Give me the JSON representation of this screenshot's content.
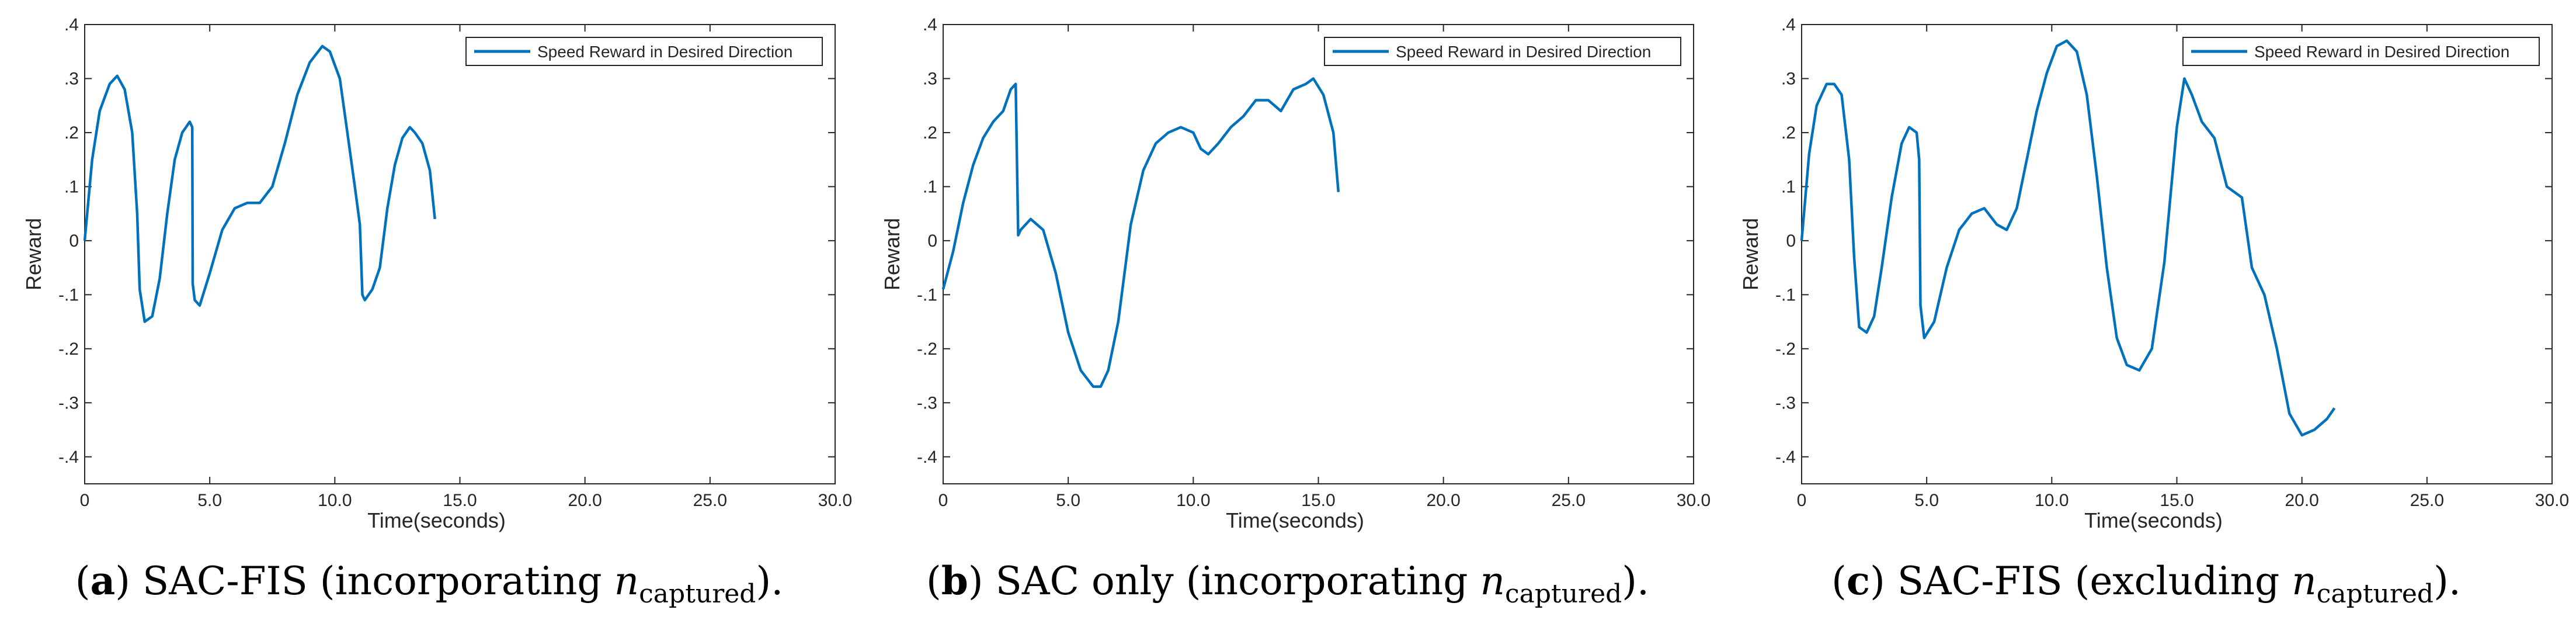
{
  "figure": {
    "caption_parts": [
      {
        "label": "a",
        "pre": "SAC-FIS (incorporating ",
        "var": "n",
        "sub": "captured",
        "post": ")."
      },
      {
        "label": "b",
        "pre": "SAC only (incorporating ",
        "var": "n",
        "sub": "captured",
        "post": ")."
      },
      {
        "label": "c",
        "pre": "SAC-FIS (excluding ",
        "var": "n",
        "sub": "captured",
        "post": ")."
      }
    ]
  },
  "colors": {
    "line": "#0072BD",
    "axis": "#262626",
    "background": "#ffffff"
  },
  "chart_data": [
    {
      "type": "line",
      "xlabel": "Time(seconds)",
      "ylabel": "Reward",
      "xlim": [
        0,
        30
      ],
      "ylim": [
        -0.45,
        0.4
      ],
      "xticks": [
        0,
        5,
        10,
        15,
        20,
        25,
        30
      ],
      "yticks": [
        -0.4,
        -0.3,
        -0.2,
        -0.1,
        0,
        0.1,
        0.2,
        0.3,
        0.4
      ],
      "legend_location": "top-right",
      "grid": false,
      "series": [
        {
          "name": "Speed Reward in Desired Direction",
          "x": [
            0,
            0.3,
            0.6,
            1.0,
            1.3,
            1.6,
            1.9,
            2.1,
            2.2,
            2.4,
            2.7,
            3.0,
            3.3,
            3.6,
            3.9,
            4.2,
            4.3,
            4.32,
            4.4,
            4.6,
            5.0,
            5.5,
            6.0,
            6.5,
            7.0,
            7.5,
            8.0,
            8.5,
            9.0,
            9.5,
            9.8,
            10.2,
            10.5,
            10.8,
            11.0,
            11.1,
            11.2,
            11.5,
            11.8,
            12.1,
            12.4,
            12.7,
            13.0,
            13.2,
            13.5,
            13.8,
            14.0
          ],
          "y": [
            0,
            0.15,
            0.24,
            0.29,
            0.305,
            0.28,
            0.2,
            0.05,
            -0.09,
            -0.15,
            -0.14,
            -0.07,
            0.05,
            0.15,
            0.2,
            0.22,
            0.21,
            -0.08,
            -0.11,
            -0.12,
            -0.06,
            0.02,
            0.06,
            0.07,
            0.07,
            0.1,
            0.18,
            0.27,
            0.33,
            0.36,
            0.35,
            0.3,
            0.2,
            0.1,
            0.03,
            -0.1,
            -0.11,
            -0.09,
            -0.05,
            0.06,
            0.14,
            0.19,
            0.21,
            0.2,
            0.18,
            0.13,
            0.04
          ]
        }
      ]
    },
    {
      "type": "line",
      "xlabel": "Time(seconds)",
      "ylabel": "Reward",
      "xlim": [
        0,
        30
      ],
      "ylim": [
        -0.45,
        0.4
      ],
      "xticks": [
        0,
        5,
        10,
        15,
        20,
        25,
        30
      ],
      "yticks": [
        -0.4,
        -0.3,
        -0.2,
        -0.1,
        0,
        0.1,
        0.2,
        0.3,
        0.4
      ],
      "legend_location": "top-right",
      "grid": false,
      "series": [
        {
          "name": "Speed Reward in Desired Direction",
          "x": [
            0,
            0.4,
            0.8,
            1.2,
            1.6,
            2.0,
            2.4,
            2.7,
            2.9,
            3.0,
            3.1,
            3.5,
            4.0,
            4.5,
            5.0,
            5.5,
            6.0,
            6.3,
            6.6,
            7.0,
            7.5,
            8.0,
            8.5,
            9.0,
            9.5,
            10.0,
            10.3,
            10.6,
            11.0,
            11.5,
            12.0,
            12.5,
            13.0,
            13.5,
            14.0,
            14.5,
            14.8,
            15.2,
            15.6,
            15.8
          ],
          "y": [
            -0.09,
            -0.02,
            0.07,
            0.14,
            0.19,
            0.22,
            0.24,
            0.28,
            0.29,
            0.01,
            0.02,
            0.04,
            0.02,
            -0.06,
            -0.17,
            -0.24,
            -0.27,
            -0.27,
            -0.24,
            -0.15,
            0.03,
            0.13,
            0.18,
            0.2,
            0.21,
            0.2,
            0.17,
            0.16,
            0.18,
            0.21,
            0.23,
            0.26,
            0.26,
            0.24,
            0.28,
            0.29,
            0.3,
            0.27,
            0.2,
            0.09
          ]
        }
      ]
    },
    {
      "type": "line",
      "xlabel": "Time(seconds)",
      "ylabel": "Reward",
      "xlim": [
        0,
        30
      ],
      "ylim": [
        -0.45,
        0.4
      ],
      "xticks": [
        0,
        5,
        10,
        15,
        20,
        25,
        30
      ],
      "yticks": [
        -0.4,
        -0.3,
        -0.2,
        -0.1,
        0,
        0.1,
        0.2,
        0.3,
        0.4
      ],
      "legend_location": "top-right",
      "grid": false,
      "series": [
        {
          "name": "Speed Reward in Desired Direction",
          "x": [
            0,
            0.3,
            0.6,
            1.0,
            1.3,
            1.6,
            1.9,
            2.1,
            2.3,
            2.6,
            2.9,
            3.2,
            3.6,
            4.0,
            4.3,
            4.6,
            4.7,
            4.75,
            4.9,
            5.3,
            5.8,
            6.3,
            6.8,
            7.3,
            7.8,
            8.2,
            8.6,
            9.0,
            9.4,
            9.8,
            10.2,
            10.6,
            11.0,
            11.4,
            11.8,
            12.2,
            12.6,
            13.0,
            13.5,
            14.0,
            14.5,
            15.0,
            15.3,
            15.6,
            16.0,
            16.5,
            17.0,
            17.3,
            17.6,
            18.0,
            18.5,
            19.0,
            19.5,
            20.0,
            20.5,
            21.0,
            21.3
          ],
          "y": [
            0,
            0.16,
            0.25,
            0.29,
            0.29,
            0.27,
            0.15,
            -0.03,
            -0.16,
            -0.17,
            -0.14,
            -0.05,
            0.08,
            0.18,
            0.21,
            0.2,
            0.15,
            -0.12,
            -0.18,
            -0.15,
            -0.05,
            0.02,
            0.05,
            0.06,
            0.03,
            0.02,
            0.06,
            0.15,
            0.24,
            0.31,
            0.36,
            0.37,
            0.35,
            0.27,
            0.12,
            -0.05,
            -0.18,
            -0.23,
            -0.24,
            -0.2,
            -0.04,
            0.21,
            0.3,
            0.27,
            0.22,
            0.19,
            0.1,
            0.09,
            0.08,
            -0.05,
            -0.1,
            -0.2,
            -0.32,
            -0.36,
            -0.35,
            -0.33,
            -0.31
          ]
        }
      ]
    }
  ]
}
